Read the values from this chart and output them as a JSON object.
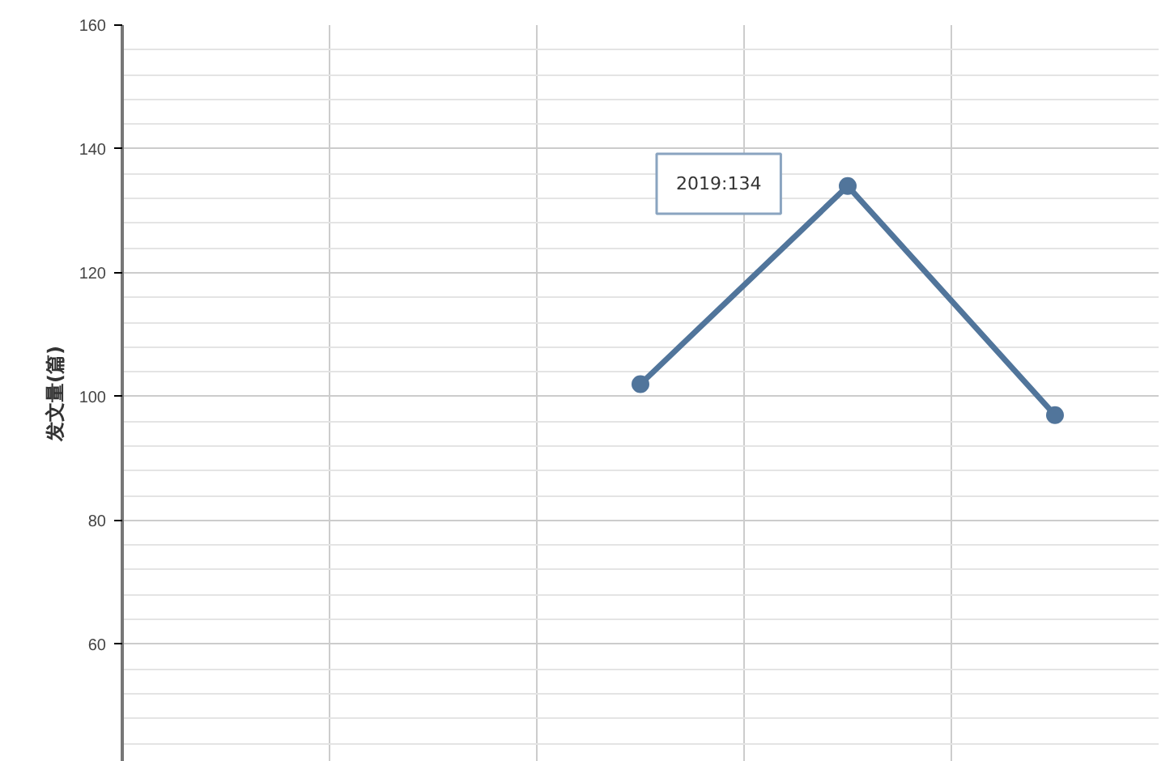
{
  "chart_data": {
    "type": "line",
    "ylabel": "发文量(篇)",
    "categories": [
      null,
      null,
      null,
      null,
      null
    ],
    "series": [
      {
        "color": "#51759b",
        "values": [
          null,
          null,
          102,
          134,
          97
        ]
      }
    ],
    "ylim": [
      41,
      160
    ],
    "yticks": [
      60,
      80,
      100,
      120,
      140,
      160
    ],
    "grid": true,
    "marker": "circle",
    "line_style": "solid",
    "annotations": [
      "2019:134"
    ]
  }
}
